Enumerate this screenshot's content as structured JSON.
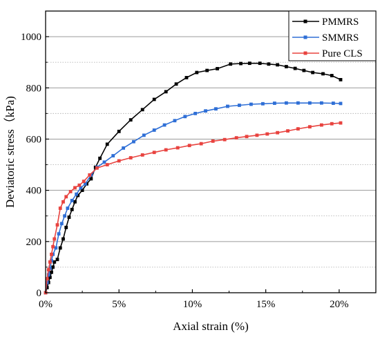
{
  "chart_data": {
    "type": "line",
    "xlabel": "Axial strain (%)",
    "ylabel": "Deviatoric stress（kPa)",
    "xlim": [
      0,
      22.5
    ],
    "ylim": [
      0,
      1100
    ],
    "x_ticks": [
      0,
      5,
      10,
      15,
      20
    ],
    "x_tick_labels": [
      "0%",
      "5%",
      "10%",
      "15%",
      "20%"
    ],
    "y_ticks": [
      0,
      200,
      400,
      600,
      800,
      1000
    ],
    "y_tick_labels": [
      "0",
      "200",
      "400",
      "600",
      "800",
      "1000"
    ],
    "grid": "horizontal",
    "legend_position": "top-right",
    "series": [
      {
        "name": "PMMRS",
        "color": "#000000",
        "marker": "square",
        "x": [
          0,
          0.1,
          0.2,
          0.3,
          0.4,
          0.5,
          0.6,
          0.8,
          1.0,
          1.2,
          1.4,
          1.6,
          1.8,
          2.0,
          2.2,
          2.5,
          2.8,
          3.1,
          3.4,
          3.7,
          4.2,
          5.0,
          5.8,
          6.6,
          7.4,
          8.2,
          8.9,
          9.6,
          10.3,
          11.0,
          11.7,
          12.6,
          13.3,
          13.9,
          14.6,
          15.2,
          15.8,
          16.4,
          17.0,
          17.6,
          18.2,
          18.9,
          19.5,
          20.1
        ],
        "y": [
          0,
          20,
          40,
          60,
          80,
          100,
          120,
          130,
          175,
          210,
          255,
          295,
          325,
          355,
          380,
          400,
          425,
          445,
          490,
          525,
          580,
          630,
          675,
          715,
          755,
          785,
          815,
          840,
          860,
          868,
          875,
          893,
          895,
          896,
          896,
          893,
          890,
          883,
          876,
          868,
          860,
          855,
          848,
          832
        ]
      },
      {
        "name": "SMMRS",
        "color": "#2f6fd6",
        "marker": "square",
        "x": [
          0,
          0.1,
          0.2,
          0.3,
          0.4,
          0.5,
          0.7,
          0.9,
          1.1,
          1.3,
          1.5,
          1.8,
          2.1,
          2.4,
          2.7,
          3.1,
          3.5,
          4.0,
          4.6,
          5.3,
          6.0,
          6.7,
          7.4,
          8.1,
          8.8,
          9.5,
          10.2,
          10.9,
          11.6,
          12.4,
          13.2,
          14.0,
          14.8,
          15.6,
          16.4,
          17.2,
          18.0,
          18.8,
          19.6,
          20.1
        ],
        "y": [
          0,
          40,
          70,
          95,
          125,
          150,
          175,
          230,
          270,
          300,
          330,
          360,
          385,
          410,
          425,
          460,
          490,
          510,
          535,
          565,
          590,
          615,
          635,
          655,
          672,
          688,
          700,
          710,
          718,
          728,
          732,
          736,
          738,
          740,
          741,
          741,
          741,
          741,
          740,
          739
        ]
      },
      {
        "name": "Pure CLS",
        "color": "#e8433f",
        "marker": "square",
        "x": [
          0,
          0.1,
          0.2,
          0.3,
          0.4,
          0.5,
          0.6,
          0.8,
          1.0,
          1.2,
          1.4,
          1.7,
          2.0,
          2.3,
          2.6,
          3.0,
          3.5,
          4.2,
          5.0,
          5.8,
          6.6,
          7.4,
          8.2,
          9.0,
          9.8,
          10.6,
          11.4,
          12.2,
          13.0,
          13.7,
          14.4,
          15.1,
          15.8,
          16.5,
          17.2,
          18.0,
          18.8,
          19.5,
          20.1
        ],
        "y": [
          0,
          55,
          90,
          120,
          150,
          180,
          210,
          265,
          330,
          355,
          375,
          395,
          410,
          420,
          435,
          460,
          487,
          500,
          515,
          527,
          538,
          548,
          558,
          566,
          575,
          582,
          592,
          598,
          605,
          610,
          615,
          620,
          625,
          632,
          640,
          648,
          655,
          660,
          663
        ]
      }
    ]
  }
}
